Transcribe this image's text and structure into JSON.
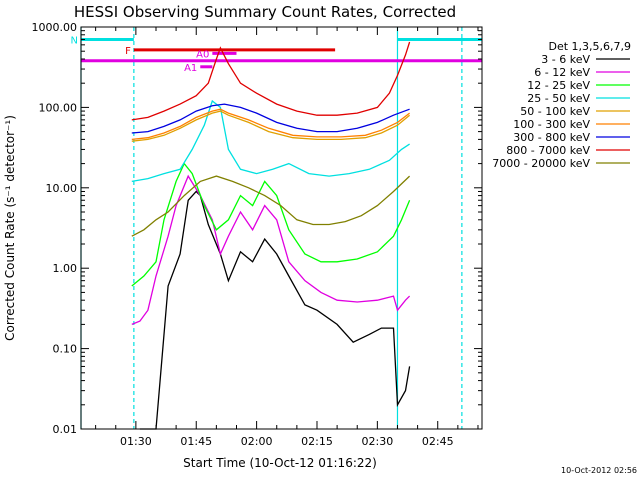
{
  "chart_data": {
    "type": "line",
    "title": "HESSI Observing Summary Count Rates, Corrected",
    "xlabel": "Start Time (10-Oct-12 01:16:22)",
    "ylabel": "Corrected Count Rate (s⁻¹ detector⁻¹)",
    "y_scale": "log",
    "ylim": [
      0.01,
      1000
    ],
    "xlim": [
      "01:16:22",
      "02:56:00"
    ],
    "y_tick_labels": [
      "1000.00",
      "100.00",
      "10.00",
      "1.00",
      "0.10",
      "0.01"
    ],
    "x_tick_labels": [
      "01:30",
      "01:45",
      "02:00",
      "02:15",
      "02:30",
      "02:45"
    ],
    "grid": false,
    "legend_title": "Det 1,3,5,6,7,9",
    "legend_position": "right",
    "footer_stamp": "10-Oct-2012 02:56",
    "series": [
      {
        "name": "3 - 6 keV",
        "color": "#000000",
        "x": [
          "01:31:00",
          "01:35:00",
          "01:38:00",
          "01:41:00",
          "01:43:00",
          "01:45:00",
          "01:46:00",
          "01:48:00",
          "01:51:00",
          "01:53:00",
          "01:56:00",
          "01:59:00",
          "02:02:00",
          "02:05:00",
          "02:08:00",
          "02:12:00",
          "02:15:00",
          "02:20:00",
          "02:24:00",
          "02:28:00",
          "02:31:00",
          "02:34:00",
          "02:35:00",
          "02:37:00",
          "02:38:00"
        ],
        "y": [
          0.01,
          0.01,
          0.6,
          1.5,
          7,
          9,
          8,
          3.5,
          1.5,
          0.7,
          1.6,
          1.2,
          2.3,
          1.5,
          0.8,
          0.35,
          0.3,
          0.2,
          0.12,
          0.15,
          0.18,
          0.18,
          0.02,
          0.03,
          0.06
        ]
      },
      {
        "name": "6 - 12 keV",
        "color": "#e000e0",
        "x": [
          "01:29:00",
          "01:31:00",
          "01:33:00",
          "01:35:00",
          "01:38:00",
          "01:40:00",
          "01:43:00",
          "01:46:00",
          "01:49:00",
          "01:51:00",
          "01:53:00",
          "01:56:00",
          "01:59:00",
          "02:02:00",
          "02:05:00",
          "02:08:00",
          "02:12:00",
          "02:16:00",
          "02:20:00",
          "02:25:00",
          "02:30:00",
          "02:34:00",
          "02:35:00",
          "02:37:00",
          "02:38:00"
        ],
        "y": [
          0.2,
          0.22,
          0.3,
          0.8,
          2.5,
          6,
          14,
          8,
          4,
          1.5,
          2.5,
          5,
          3,
          6,
          4,
          1.2,
          0.7,
          0.5,
          0.4,
          0.38,
          0.4,
          0.45,
          0.3,
          0.4,
          0.45
        ]
      },
      {
        "name": "12 - 25 keV",
        "color": "#00ff00",
        "x": [
          "01:29:00",
          "01:32:00",
          "01:35:00",
          "01:37:00",
          "01:40:00",
          "01:42:00",
          "01:44:00",
          "01:47:00",
          "01:50:00",
          "01:53:00",
          "01:56:00",
          "01:59:00",
          "02:02:00",
          "02:05:00",
          "02:08:00",
          "02:12:00",
          "02:16:00",
          "02:20:00",
          "02:25:00",
          "02:30:00",
          "02:34:00",
          "02:36:00",
          "02:38:00"
        ],
        "y": [
          0.6,
          0.8,
          1.2,
          4,
          12,
          20,
          15,
          6,
          3,
          4,
          8,
          6,
          12,
          8,
          3,
          1.5,
          1.2,
          1.2,
          1.3,
          1.6,
          2.5,
          4,
          7
        ]
      },
      {
        "name": "25 - 50 keV",
        "color": "#00e0e0",
        "x": [
          "01:29:00",
          "01:33:00",
          "01:37:00",
          "01:41:00",
          "01:44:00",
          "01:47:00",
          "01:49:00",
          "01:51:00",
          "01:53:00",
          "01:56:00",
          "02:00:00",
          "02:04:00",
          "02:08:00",
          "02:13:00",
          "02:18:00",
          "02:23:00",
          "02:28:00",
          "02:33:00",
          "02:36:00",
          "02:38:00"
        ],
        "y": [
          12,
          13,
          15,
          17,
          30,
          60,
          120,
          100,
          30,
          17,
          15,
          17,
          20,
          15,
          14,
          15,
          17,
          22,
          30,
          35
        ]
      },
      {
        "name": "50 - 100 keV",
        "color": "#e0a000",
        "x": [
          "01:29:00",
          "01:33:00",
          "01:37:00",
          "01:41:00",
          "01:45:00",
          "01:49:00",
          "01:51:00",
          "01:53:00",
          "01:58:00",
          "02:03:00",
          "02:09:00",
          "02:15:00",
          "02:21:00",
          "02:27:00",
          "02:31:00",
          "02:35:00",
          "02:38:00"
        ],
        "y": [
          38,
          40,
          45,
          55,
          70,
          85,
          90,
          80,
          65,
          50,
          42,
          40,
          40,
          42,
          48,
          60,
          80
        ]
      },
      {
        "name": "100 - 300 keV",
        "color": "#ff8000",
        "x": [
          "01:29:00",
          "01:33:00",
          "01:37:00",
          "01:41:00",
          "01:45:00",
          "01:49:00",
          "01:51:00",
          "01:53:00",
          "01:58:00",
          "02:03:00",
          "02:09:00",
          "02:15:00",
          "02:21:00",
          "02:27:00",
          "02:31:00",
          "02:35:00",
          "02:38:00"
        ],
        "y": [
          40,
          42,
          48,
          58,
          75,
          90,
          95,
          85,
          70,
          55,
          45,
          43,
          43,
          45,
          52,
          65,
          85
        ]
      },
      {
        "name": "300 - 800 keV",
        "color": "#0000e0",
        "x": [
          "01:29:00",
          "01:33:00",
          "01:37:00",
          "01:41:00",
          "01:45:00",
          "01:49:00",
          "01:52:00",
          "01:56:00",
          "02:00:00",
          "02:05:00",
          "02:10:00",
          "02:15:00",
          "02:20:00",
          "02:25:00",
          "02:30:00",
          "02:34:00",
          "02:38:00"
        ],
        "y": [
          48,
          50,
          58,
          70,
          90,
          105,
          110,
          100,
          85,
          65,
          55,
          50,
          50,
          55,
          65,
          80,
          95
        ]
      },
      {
        "name": "800 - 7000 keV",
        "color": "#e00000",
        "x": [
          "01:29:00",
          "01:33:00",
          "01:37:00",
          "01:41:00",
          "01:45:00",
          "01:48:00",
          "01:50:00",
          "01:51:00",
          "01:53:00",
          "01:56:00",
          "02:00:00",
          "02:05:00",
          "02:10:00",
          "02:15:00",
          "02:20:00",
          "02:25:00",
          "02:30:00",
          "02:33:00",
          "02:35:00",
          "02:37:00",
          "02:38:00"
        ],
        "y": [
          70,
          75,
          90,
          110,
          140,
          200,
          400,
          550,
          350,
          200,
          150,
          110,
          90,
          80,
          80,
          85,
          100,
          150,
          250,
          450,
          650
        ]
      },
      {
        "name": "7000 - 20000 keV",
        "color": "#808000",
        "x": [
          "01:29:00",
          "01:32:00",
          "01:35:00",
          "01:38:00",
          "01:42:00",
          "01:46:00",
          "01:50:00",
          "01:54:00",
          "01:58:00",
          "02:02:00",
          "02:06:00",
          "02:10:00",
          "02:14:00",
          "02:18:00",
          "02:22:00",
          "02:26:00",
          "02:30:00",
          "02:34:00",
          "02:38:00"
        ],
        "y": [
          2.5,
          3,
          4,
          5,
          8,
          12,
          14,
          12,
          10,
          8,
          6,
          4,
          3.5,
          3.5,
          3.8,
          4.5,
          6,
          9,
          14
        ]
      }
    ],
    "annotations": {
      "flag_rows": [
        {
          "label": "N",
          "color": "#00e0e0",
          "y": 700,
          "segments": [
            [
              "01:16:22",
              "01:29:30"
            ],
            [
              "02:35:00",
              "02:56:00"
            ]
          ]
        },
        {
          "label": "F",
          "color": "#e00000",
          "y": 520,
          "segments": [
            [
              "01:29:30",
              "02:19:30"
            ]
          ]
        },
        {
          "label": "A0",
          "color": "#e000e0",
          "y": 470,
          "segments": [
            [
              "01:49:00",
              "01:55:00"
            ]
          ]
        },
        {
          "label": "",
          "color": "#e000e0",
          "y": 380,
          "segments": [
            [
              "01:16:22",
              "02:56:00"
            ]
          ]
        },
        {
          "label": "A1",
          "color": "#e000e0",
          "y": 320,
          "segments": [
            [
              "01:46:00",
              "01:49:00"
            ]
          ]
        }
      ],
      "vertical_lines": [
        {
          "x": "01:16:22",
          "color": "#00e0e0",
          "style": "solid"
        },
        {
          "x": "01:29:30",
          "color": "#00e0e0",
          "style": "dashed"
        },
        {
          "x": "02:35:00",
          "color": "#00e0e0",
          "style": "solid"
        },
        {
          "x": "02:51:00",
          "color": "#00e0e0",
          "style": "dashed"
        }
      ]
    }
  }
}
